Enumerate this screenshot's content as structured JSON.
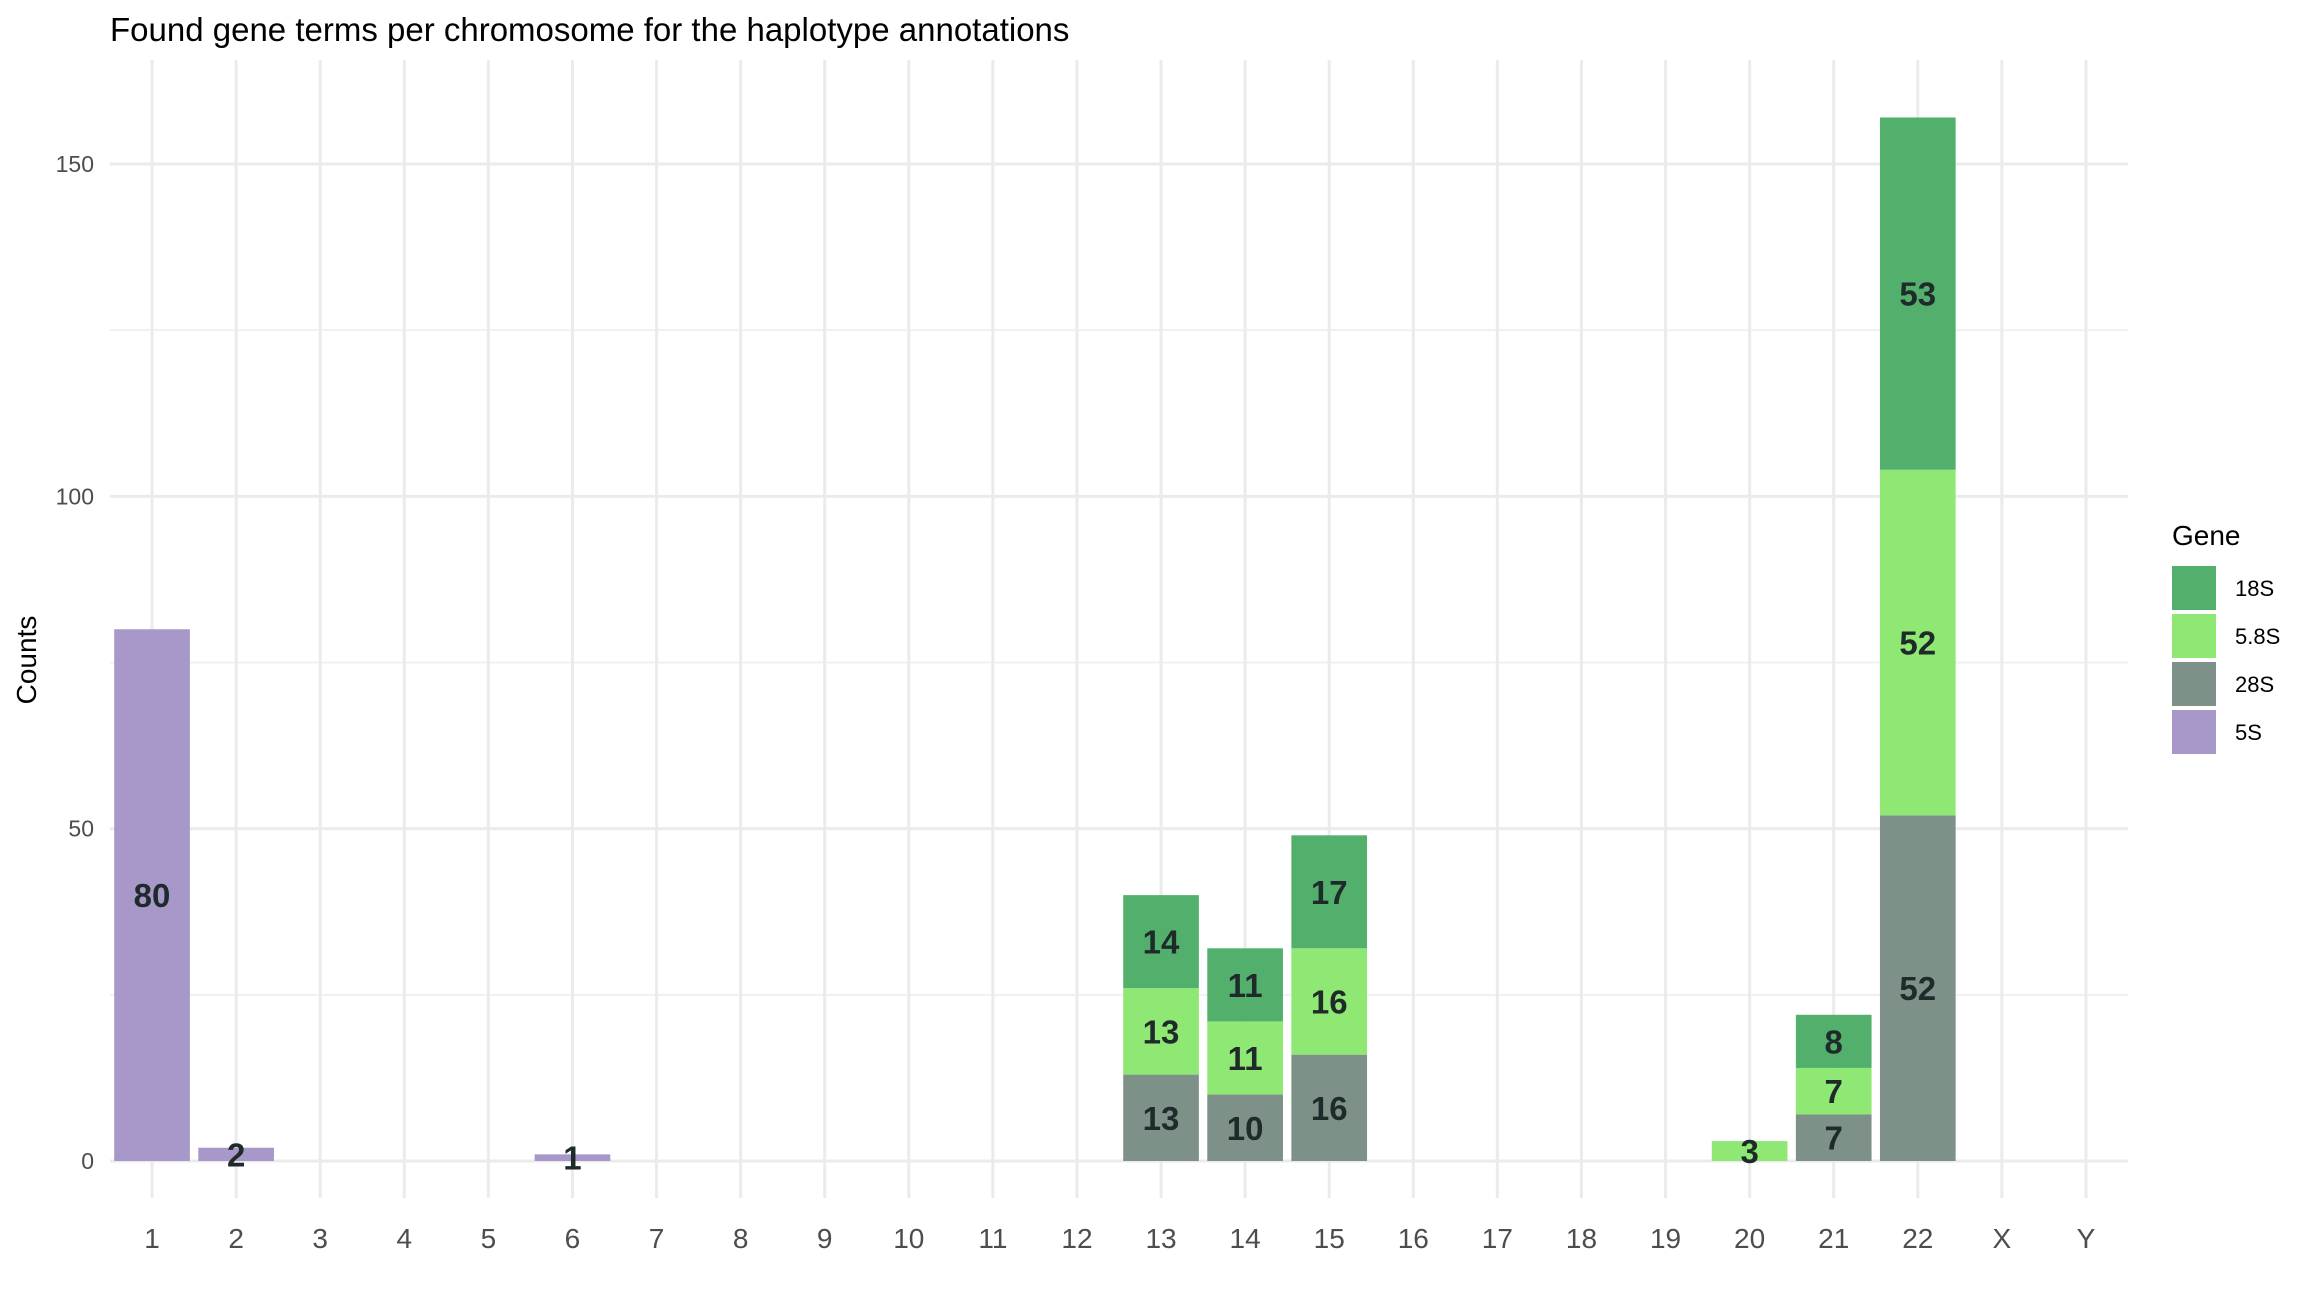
{
  "chart_data": {
    "type": "bar",
    "stacked": true,
    "title": "Found gene terms per chromosome for the haplotype annotations",
    "xlabel": "",
    "ylabel": "Counts",
    "ylim": [
      -7,
      162
    ],
    "yticks": [
      0,
      50,
      100,
      150
    ],
    "grid": true,
    "legend": {
      "title": "Gene",
      "position": "right"
    },
    "categories": [
      "1",
      "2",
      "3",
      "4",
      "5",
      "6",
      "7",
      "8",
      "9",
      "10",
      "11",
      "12",
      "13",
      "14",
      "15",
      "16",
      "17",
      "18",
      "19",
      "20",
      "21",
      "22",
      "X",
      "Y"
    ],
    "series": [
      {
        "name": "28S",
        "color": "#7d9189",
        "values": [
          0,
          0,
          0,
          0,
          0,
          0,
          0,
          0,
          0,
          0,
          0,
          0,
          13,
          10,
          16,
          0,
          0,
          0,
          0,
          0,
          7,
          52,
          0,
          0
        ]
      },
      {
        "name": "5.8S",
        "color": "#90e874",
        "values": [
          0,
          0,
          0,
          0,
          0,
          0,
          0,
          0,
          0,
          0,
          0,
          0,
          13,
          11,
          16,
          0,
          0,
          0,
          0,
          3,
          7,
          52,
          0,
          0
        ]
      },
      {
        "name": "18S",
        "color": "#53b06c",
        "values": [
          0,
          0,
          0,
          0,
          0,
          0,
          0,
          0,
          0,
          0,
          0,
          0,
          14,
          11,
          17,
          0,
          0,
          0,
          0,
          0,
          8,
          53,
          0,
          0
        ]
      },
      {
        "name": "5S",
        "color": "#a897c9",
        "values": [
          80,
          2,
          0,
          0,
          0,
          1,
          0,
          0,
          0,
          0,
          0,
          0,
          0,
          0,
          0,
          0,
          0,
          0,
          0,
          0,
          0,
          0,
          0,
          0
        ]
      }
    ],
    "legend_order": [
      "18S",
      "5.8S",
      "28S",
      "5S"
    ]
  }
}
